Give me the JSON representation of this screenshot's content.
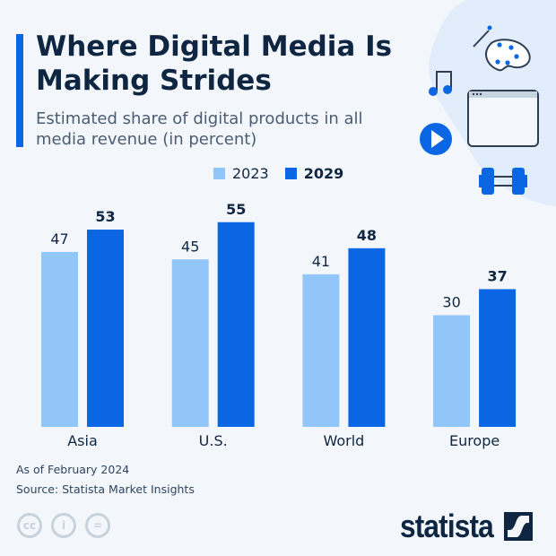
{
  "header": {
    "title": "Where Digital Media Is Making Strides",
    "subtitle": "Estimated share of digital products in all media revenue (in percent)"
  },
  "icons": [
    "palette-icon",
    "music-note-icon",
    "browser-window-icon",
    "play-button-icon",
    "dumbbell-icon"
  ],
  "colors": {
    "series_2023": "#93c6f8",
    "series_2029": "#0b66e4",
    "accent": "#0b66e4",
    "text": "#0f2642"
  },
  "chart_data": {
    "type": "bar",
    "categories": [
      "Asia",
      "U.S.",
      "World",
      "Europe"
    ],
    "series": [
      {
        "name": "2023",
        "values": [
          47,
          45,
          41,
          30
        ]
      },
      {
        "name": "2029",
        "values": [
          53,
          55,
          48,
          37
        ]
      }
    ],
    "ylim": [
      0,
      60
    ],
    "grid": false,
    "legend": "top",
    "data_labels": true
  },
  "footer": {
    "date_note": "As of February 2024",
    "source": "Source: Statista Market Insights",
    "license_icons": [
      "cc-icon",
      "attribution-icon",
      "no-derivatives-icon"
    ],
    "logo_text": "statista"
  }
}
